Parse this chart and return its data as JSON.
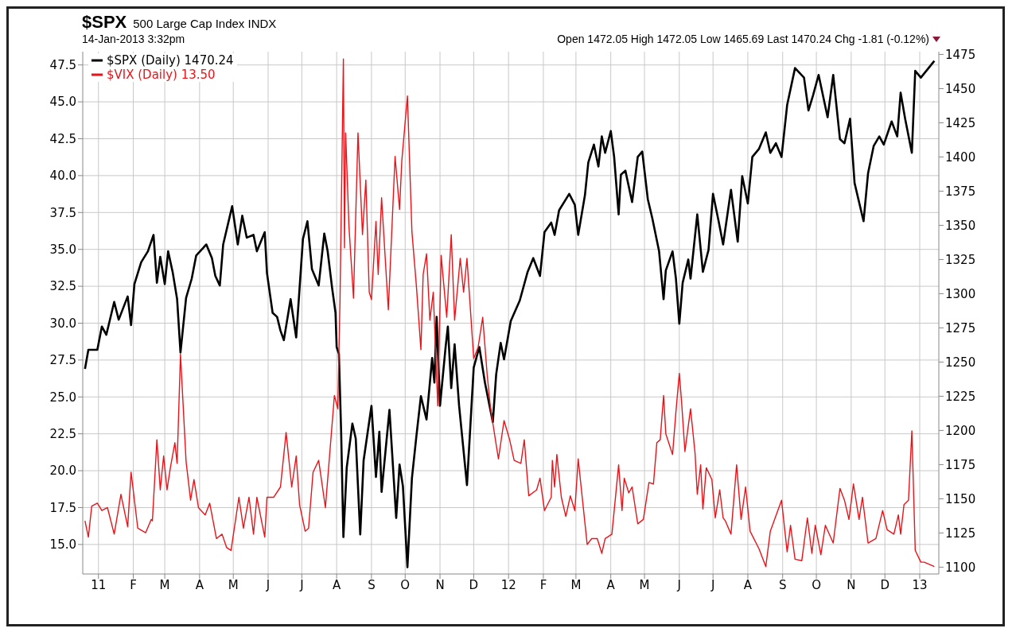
{
  "chart_data": {
    "type": "line",
    "title": "$SPX",
    "subtitle": "500 Large Cap Index INDX",
    "annotations": [
      "14-Jan-2013 3:32pm",
      "Open 1472.05 High 1472.05 Low 1465.69 Last 1470.24 Chg -1.81 (-0.12%)"
    ],
    "series": [
      {
        "name": "$SPX (Daily) 1470.24",
        "color": "#000000",
        "axis": "y2",
        "x": [
          "2010-12-20",
          "2010-12-23",
          "2010-12-31",
          "2011-01-04",
          "2011-01-08",
          "2011-01-15",
          "2011-01-19",
          "2011-01-27",
          "2011-01-30",
          "2011-02-02",
          "2011-02-08",
          "2011-02-14",
          "2011-02-19",
          "2011-02-22",
          "2011-02-25",
          "2011-03-01",
          "2011-03-04",
          "2011-03-08",
          "2011-03-12",
          "2011-03-15",
          "2011-03-20",
          "2011-03-25",
          "2011-03-29",
          "2011-04-07",
          "2011-04-12",
          "2011-04-15",
          "2011-04-19",
          "2011-04-22",
          "2011-04-30",
          "2011-05-05",
          "2011-05-09",
          "2011-05-13",
          "2011-05-19",
          "2011-05-22",
          "2011-05-29",
          "2011-05-31",
          "2011-06-05",
          "2011-06-09",
          "2011-06-12",
          "2011-06-15",
          "2011-06-21",
          "2011-06-26",
          "2011-07-02",
          "2011-07-06",
          "2011-07-10",
          "2011-07-16",
          "2011-07-21",
          "2011-07-24",
          "2011-07-28",
          "2011-07-31",
          "2011-08-01",
          "2011-08-03",
          "2011-08-05",
          "2011-08-07",
          "2011-08-10",
          "2011-08-15",
          "2011-08-18",
          "2011-08-22",
          "2011-08-25",
          "2011-09-01",
          "2011-09-05",
          "2011-09-08",
          "2011-09-10",
          "2011-09-17",
          "2011-09-23",
          "2011-09-26",
          "2011-09-29",
          "2011-10-03",
          "2011-10-07",
          "2011-10-11",
          "2011-10-15",
          "2011-10-20",
          "2011-10-25",
          "2011-10-27",
          "2011-10-29",
          "2011-11-01",
          "2011-11-06",
          "2011-11-08",
          "2011-11-11",
          "2011-11-14",
          "2011-11-18",
          "2011-11-25",
          "2011-12-01",
          "2011-12-06",
          "2011-12-11",
          "2011-12-18",
          "2011-12-21",
          "2011-12-25",
          "2011-12-28",
          "2012-01-03",
          "2012-01-11",
          "2012-01-18",
          "2012-01-23",
          "2012-01-29",
          "2012-02-02",
          "2012-02-08",
          "2012-02-11",
          "2012-02-15",
          "2012-02-24",
          "2012-02-29",
          "2012-03-03",
          "2012-03-09",
          "2012-03-12",
          "2012-03-17",
          "2012-03-21",
          "2012-03-24",
          "2012-03-27",
          "2012-04-01",
          "2012-04-04",
          "2012-04-08",
          "2012-04-10",
          "2012-04-14",
          "2012-04-20",
          "2012-04-25",
          "2012-04-29",
          "2012-05-04",
          "2012-05-08",
          "2012-05-14",
          "2012-05-18",
          "2012-05-20",
          "2012-05-26",
          "2012-05-29",
          "2012-06-01",
          "2012-06-04",
          "2012-06-09",
          "2012-06-11",
          "2012-06-17",
          "2012-06-22",
          "2012-06-27",
          "2012-07-01",
          "2012-07-06",
          "2012-07-10",
          "2012-07-17",
          "2012-07-23",
          "2012-07-27",
          "2012-08-01",
          "2012-08-05",
          "2012-08-11",
          "2012-08-17",
          "2012-08-21",
          "2012-08-26",
          "2012-08-31",
          "2012-09-05",
          "2012-09-12",
          "2012-09-20",
          "2012-09-24",
          "2012-09-28",
          "2012-10-03",
          "2012-10-11",
          "2012-10-16",
          "2012-10-22",
          "2012-10-26",
          "2012-10-31",
          "2012-11-04",
          "2012-11-12",
          "2012-11-16",
          "2012-11-21",
          "2012-11-26",
          "2012-11-30",
          "2012-12-07",
          "2012-12-12",
          "2012-12-15",
          "2012-12-19",
          "2012-12-25",
          "2012-12-28",
          "2013-01-02",
          "2013-01-14"
        ],
        "values": [
          1245,
          1259,
          1259,
          1276,
          1270,
          1294,
          1281,
          1298,
          1277,
          1307,
          1323,
          1331,
          1343,
          1308,
          1327,
          1307,
          1331,
          1316,
          1296,
          1257,
          1297,
          1311,
          1328,
          1336,
          1326,
          1313,
          1306,
          1336,
          1364,
          1336,
          1357,
          1341,
          1343,
          1331,
          1345,
          1315,
          1286,
          1283,
          1273,
          1266,
          1296,
          1268,
          1340,
          1353,
          1318,
          1306,
          1344,
          1331,
          1304,
          1286,
          1261,
          1256,
          1199,
          1122,
          1173,
          1205,
          1194,
          1124,
          1178,
          1218,
          1166,
          1199,
          1155,
          1215,
          1136,
          1175,
          1159,
          1100,
          1165,
          1196,
          1225,
          1208,
          1253,
          1235,
          1283,
          1218,
          1261,
          1276,
          1231,
          1263,
          1218,
          1160,
          1246,
          1261,
          1235,
          1206,
          1241,
          1264,
          1252,
          1280,
          1295,
          1316,
          1326,
          1313,
          1345,
          1352,
          1343,
          1361,
          1373,
          1365,
          1343,
          1372,
          1396,
          1409,
          1393,
          1415,
          1403,
          1419,
          1400,
          1358,
          1387,
          1390,
          1367,
          1400,
          1404,
          1369,
          1355,
          1331,
          1296,
          1317,
          1331,
          1311,
          1278,
          1308,
          1325,
          1311,
          1358,
          1316,
          1332,
          1373,
          1353,
          1336,
          1376,
          1338,
          1386,
          1366,
          1400,
          1406,
          1418,
          1403,
          1410,
          1400,
          1438,
          1465,
          1458,
          1434,
          1445,
          1460,
          1429,
          1460,
          1413,
          1410,
          1428,
          1381,
          1353,
          1388,
          1408,
          1415,
          1409,
          1426,
          1415,
          1447,
          1428,
          1403,
          1463,
          1458,
          1470.24
        ]
      },
      {
        "name": "$VIX (Daily) 13.50",
        "color": "#e8141a",
        "axis": "y",
        "x": [
          "2010-12-20",
          "2010-12-23",
          "2010-12-26",
          "2010-12-31",
          "2011-01-04",
          "2011-01-09",
          "2011-01-15",
          "2011-01-21",
          "2011-01-27",
          "2011-01-30",
          "2011-02-05",
          "2011-02-12",
          "2011-02-17",
          "2011-02-18",
          "2011-02-22",
          "2011-02-25",
          "2011-02-28",
          "2011-03-03",
          "2011-03-06",
          "2011-03-10",
          "2011-03-12",
          "2011-03-15",
          "2011-03-20",
          "2011-03-24",
          "2011-03-27",
          "2011-03-31",
          "2011-04-06",
          "2011-04-10",
          "2011-04-13",
          "2011-04-16",
          "2011-04-21",
          "2011-04-25",
          "2011-04-29",
          "2011-05-06",
          "2011-05-10",
          "2011-05-15",
          "2011-05-19",
          "2011-05-22",
          "2011-05-29",
          "2011-05-31",
          "2011-06-06",
          "2011-06-12",
          "2011-06-17",
          "2011-06-22",
          "2011-06-26",
          "2011-06-29",
          "2011-07-04",
          "2011-07-07",
          "2011-07-11",
          "2011-07-16",
          "2011-07-22",
          "2011-07-30",
          "2011-08-02",
          "2011-08-04",
          "2011-08-07",
          "2011-08-08",
          "2011-08-09",
          "2011-08-12",
          "2011-08-16",
          "2011-08-20",
          "2011-08-24",
          "2011-08-27",
          "2011-08-30",
          "2011-09-01",
          "2011-09-05",
          "2011-09-07",
          "2011-09-10",
          "2011-09-16",
          "2011-09-22",
          "2011-09-26",
          "2011-09-28",
          "2011-10-03",
          "2011-10-07",
          "2011-10-11",
          "2011-10-15",
          "2011-10-17",
          "2011-10-20",
          "2011-10-23",
          "2011-10-26",
          "2011-10-30",
          "2011-11-02",
          "2011-11-07",
          "2011-11-11",
          "2011-11-14",
          "2011-11-19",
          "2011-11-22",
          "2011-11-25",
          "2011-12-01",
          "2011-12-05",
          "2011-12-09",
          "2011-12-13",
          "2011-12-16",
          "2011-12-23",
          "2011-12-28",
          "2012-01-02",
          "2012-01-06",
          "2012-01-12",
          "2012-01-15",
          "2012-01-19",
          "2012-01-26",
          "2012-01-29",
          "2012-02-02",
          "2012-02-08",
          "2012-02-09",
          "2012-02-11",
          "2012-02-13",
          "2012-02-17",
          "2012-02-21",
          "2012-02-25",
          "2012-02-29",
          "2012-03-03",
          "2012-03-11",
          "2012-03-15",
          "2012-03-20",
          "2012-03-24",
          "2012-03-27",
          "2012-04-02",
          "2012-04-08",
          "2012-04-11",
          "2012-04-13",
          "2012-04-17",
          "2012-04-20",
          "2012-04-25",
          "2012-04-30",
          "2012-05-05",
          "2012-05-09",
          "2012-05-12",
          "2012-05-15",
          "2012-05-18",
          "2012-05-20",
          "2012-05-26",
          "2012-05-29",
          "2012-06-01",
          "2012-06-03",
          "2012-06-06",
          "2012-06-11",
          "2012-06-15",
          "2012-06-17",
          "2012-06-20",
          "2012-06-22",
          "2012-06-25",
          "2012-06-30",
          "2012-07-03",
          "2012-07-07",
          "2012-07-10",
          "2012-07-12",
          "2012-07-17",
          "2012-07-22",
          "2012-07-26",
          "2012-07-30",
          "2012-08-03",
          "2012-08-11",
          "2012-08-17",
          "2012-08-21",
          "2012-08-31",
          "2012-09-05",
          "2012-09-08",
          "2012-09-12",
          "2012-09-18",
          "2012-09-23",
          "2012-09-27",
          "2012-09-30",
          "2012-10-05",
          "2012-10-09",
          "2012-10-16",
          "2012-10-22",
          "2012-10-26",
          "2012-10-30",
          "2012-11-03",
          "2012-11-08",
          "2012-11-11",
          "2012-11-16",
          "2012-11-23",
          "2012-11-29",
          "2012-12-03",
          "2012-12-09",
          "2012-12-13",
          "2012-12-15",
          "2012-12-18",
          "2012-12-22",
          "2012-12-25",
          "2012-12-28",
          "2013-01-02",
          "2013-01-05",
          "2013-01-14"
        ],
        "values": [
          16.6,
          15.5,
          17.6,
          17.8,
          17.3,
          17.5,
          15.7,
          18.4,
          16.2,
          19.9,
          16.1,
          15.8,
          16.7,
          16.6,
          22.1,
          18.7,
          21.0,
          18.7,
          20.2,
          21.9,
          20.5,
          27.9,
          20.6,
          18.0,
          19.4,
          17.5,
          17.0,
          17.8,
          16.6,
          15.4,
          15.7,
          14.8,
          14.6,
          18.2,
          16.1,
          18.2,
          15.7,
          18.2,
          15.5,
          18.2,
          18.2,
          18.9,
          22.6,
          18.9,
          21.0,
          17.7,
          15.9,
          16.1,
          19.9,
          20.7,
          17.5,
          25.1,
          24.2,
          31.6,
          47.9,
          35.1,
          42.9,
          36.5,
          31.7,
          42.9,
          36.0,
          39.7,
          32.1,
          31.6,
          36.9,
          33.3,
          38.5,
          30.9,
          41.3,
          37.7,
          41.0,
          45.4,
          36.2,
          32.5,
          28.2,
          33.3,
          34.7,
          30.2,
          32.1,
          24.4,
          34.6,
          30.4,
          36.0,
          30.2,
          34.4,
          32.1,
          34.4,
          27.6,
          28.4,
          30.4,
          26.5,
          24.2,
          20.8,
          23.4,
          22.1,
          20.7,
          20.5,
          22.1,
          18.3,
          18.7,
          19.5,
          17.3,
          18.2,
          20.7,
          18.9,
          21.1,
          18.2,
          16.9,
          18.3,
          17.3,
          20.8,
          15.0,
          15.4,
          15.4,
          14.4,
          15.4,
          15.7,
          20.4,
          17.3,
          19.5,
          18.5,
          18.9,
          16.4,
          16.7,
          19.2,
          19.1,
          21.9,
          22.1,
          25.1,
          22.5,
          21.1,
          24.0,
          26.6,
          24.7,
          21.3,
          24.2,
          21.2,
          18.4,
          20.4,
          17.4,
          20.2,
          19.4,
          16.8,
          18.7,
          16.8,
          16.6,
          15.7,
          20.4,
          16.7,
          18.9,
          15.9,
          14.7,
          13.5,
          15.9,
          18.0,
          14.5,
          16.3,
          14.0,
          13.9,
          16.8,
          14.4,
          16.3,
          14.3,
          16.3,
          15.1,
          18.8,
          18.0,
          16.7,
          19.1,
          16.7,
          18.2,
          15.1,
          15.4,
          17.3,
          16.0,
          15.7,
          17.0,
          15.7,
          17.7,
          18.0,
          22.7,
          14.6,
          13.8,
          13.8,
          13.5
        ]
      }
    ],
    "xlim": [
      "2010-12-18",
      "2013-01-18"
    ],
    "xticks": [
      {
        "value": "2011-01-01",
        "label": "11"
      },
      {
        "value": "2011-02-01",
        "label": "F"
      },
      {
        "value": "2011-03-01",
        "label": "M"
      },
      {
        "value": "2011-04-01",
        "label": "A"
      },
      {
        "value": "2011-05-01",
        "label": "M"
      },
      {
        "value": "2011-06-01",
        "label": "J"
      },
      {
        "value": "2011-07-01",
        "label": "J"
      },
      {
        "value": "2011-08-01",
        "label": "A"
      },
      {
        "value": "2011-09-01",
        "label": "S"
      },
      {
        "value": "2011-10-01",
        "label": "O"
      },
      {
        "value": "2011-11-01",
        "label": "N"
      },
      {
        "value": "2011-12-01",
        "label": "D"
      },
      {
        "value": "2012-01-01",
        "label": "12"
      },
      {
        "value": "2012-02-01",
        "label": "F"
      },
      {
        "value": "2012-03-01",
        "label": "M"
      },
      {
        "value": "2012-04-01",
        "label": "A"
      },
      {
        "value": "2012-05-01",
        "label": "M"
      },
      {
        "value": "2012-06-01",
        "label": "J"
      },
      {
        "value": "2012-07-01",
        "label": "J"
      },
      {
        "value": "2012-08-01",
        "label": "A"
      },
      {
        "value": "2012-09-01",
        "label": "S"
      },
      {
        "value": "2012-10-01",
        "label": "O"
      },
      {
        "value": "2012-11-01",
        "label": "N"
      },
      {
        "value": "2012-12-01",
        "label": "D"
      },
      {
        "value": "2013-01-01",
        "label": "13"
      }
    ],
    "ylim": [
      13.0,
      48.4
    ],
    "yticks": [
      {
        "value": 15,
        "label": "15.0"
      },
      {
        "value": 17.5,
        "label": "17.5"
      },
      {
        "value": 20,
        "label": "20.0"
      },
      {
        "value": 22.5,
        "label": "22.5"
      },
      {
        "value": 25,
        "label": "25.0"
      },
      {
        "value": 27.5,
        "label": "27.5"
      },
      {
        "value": 30,
        "label": "30.0"
      },
      {
        "value": 32.5,
        "label": "32.5"
      },
      {
        "value": 35,
        "label": "35.0"
      },
      {
        "value": 37.5,
        "label": "37.5"
      },
      {
        "value": 40,
        "label": "40.0"
      },
      {
        "value": 42.5,
        "label": "42.5"
      },
      {
        "value": 45,
        "label": "45.0"
      },
      {
        "value": 47.5,
        "label": "47.5"
      }
    ],
    "y2lim": [
      1095,
      1477
    ],
    "y2ticks": [
      1100,
      1125,
      1150,
      1175,
      1200,
      1225,
      1250,
      1275,
      1300,
      1325,
      1350,
      1375,
      1400,
      1425,
      1450,
      1475
    ],
    "grid": true,
    "legend": "top left",
    "line_style": "solid"
  }
}
